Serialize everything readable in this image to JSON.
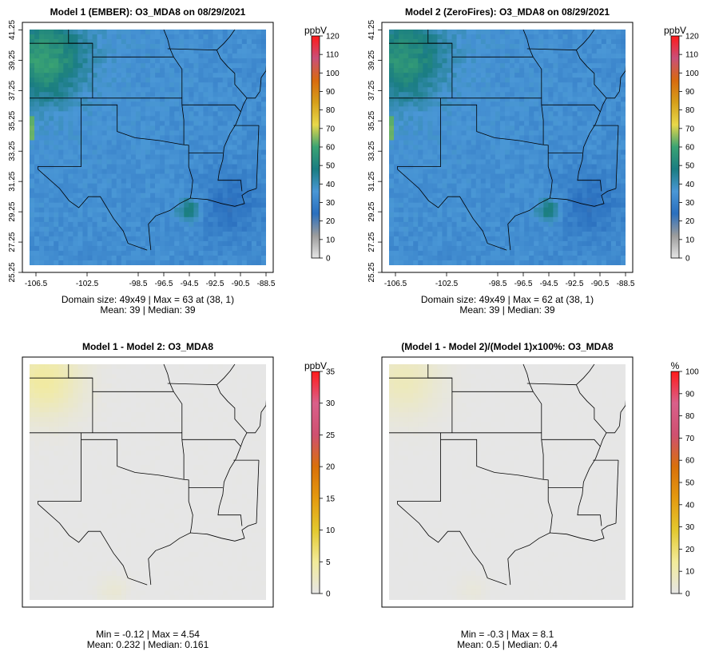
{
  "colors": {
    "scale_stops": [
      "#e6e6e6",
      "#9c9c9c",
      "#2a6fbe",
      "#4a97d6",
      "#1a7d82",
      "#3aa373",
      "#e8d84a",
      "#d6a01a",
      "#d86a0f",
      "#c94f78",
      "#ff1a1a"
    ],
    "diff_stops": [
      "#e6e6e6",
      "#f2eb9a",
      "#e3c82e",
      "#e49a10",
      "#d9700a",
      "#cf5070",
      "#d9608a",
      "#ff1a1a"
    ]
  },
  "chart_data": [
    {
      "type": "heatmap",
      "id": "p1",
      "title": "Model 1 (EMBER): O3_MDA8 on 08/29/2021",
      "x_ticks": [
        "-106.5",
        "-102.5",
        "-98.5",
        "-96.5",
        "-94.5",
        "-92.5",
        "-90.5",
        "-88.5"
      ],
      "y_ticks": [
        "25.25",
        "27.25",
        "29.25",
        "31.25",
        "33.25",
        "35.25",
        "37.25",
        "39.25",
        "41.25"
      ],
      "xlim": [
        -107.0,
        -88.5
      ],
      "ylim": [
        25.25,
        41.75
      ],
      "grid_size": [
        49,
        49
      ],
      "colorbar": {
        "unit": "ppbV",
        "ticks": [
          "0",
          "10",
          "20",
          "30",
          "40",
          "50",
          "60",
          "70",
          "80",
          "90",
          "100",
          "110",
          "120"
        ],
        "range": [
          0,
          120
        ]
      },
      "stats": [
        "Domain size: 49x49 | Max = 63 at (38, 1)",
        "Mean: 39 |  Median: 39"
      ]
    },
    {
      "type": "heatmap",
      "id": "p2",
      "title": "Model 2 (ZeroFires): O3_MDA8 on 08/29/2021",
      "x_ticks": [
        "-106.5",
        "-102.5",
        "-98.5",
        "-96.5",
        "-94.5",
        "-92.5",
        "-90.5",
        "-88.5"
      ],
      "y_ticks": [
        "25.25",
        "27.25",
        "29.25",
        "31.25",
        "33.25",
        "35.25",
        "37.25",
        "39.25",
        "41.25"
      ],
      "xlim": [
        -107.0,
        -88.5
      ],
      "ylim": [
        25.25,
        41.75
      ],
      "grid_size": [
        49,
        49
      ],
      "colorbar": {
        "unit": "ppbV",
        "ticks": [
          "0",
          "10",
          "20",
          "30",
          "40",
          "50",
          "60",
          "70",
          "80",
          "90",
          "100",
          "110",
          "120"
        ],
        "range": [
          0,
          120
        ]
      },
      "stats": [
        "Domain size: 49x49 | Max = 62 at (38, 1)",
        "Mean: 39 |  Median: 39"
      ]
    },
    {
      "type": "heatmap",
      "id": "p3",
      "title": "Model 1 - Model 2: O3_MDA8",
      "colorbar": {
        "unit": "ppbV",
        "ticks": [
          "0",
          "5",
          "10",
          "15",
          "20",
          "25",
          "30",
          "35"
        ],
        "range": [
          0,
          35
        ]
      },
      "stats": [
        "Min = -0.12 | Max = 4.54",
        "Mean: 0.232 |  Median: 0.161"
      ]
    },
    {
      "type": "heatmap",
      "id": "p4",
      "title": "(Model 1 - Model 2)/(Model 1)x100%: O3_MDA8",
      "colorbar": {
        "unit": "%",
        "ticks": [
          "0",
          "10",
          "20",
          "30",
          "40",
          "50",
          "60",
          "70",
          "80",
          "90",
          "100"
        ],
        "range": [
          0,
          100
        ]
      },
      "stats": [
        "Min = -0.3 | Max = 8.1",
        "Mean: 0.5 |  Median: 0.4"
      ]
    }
  ]
}
